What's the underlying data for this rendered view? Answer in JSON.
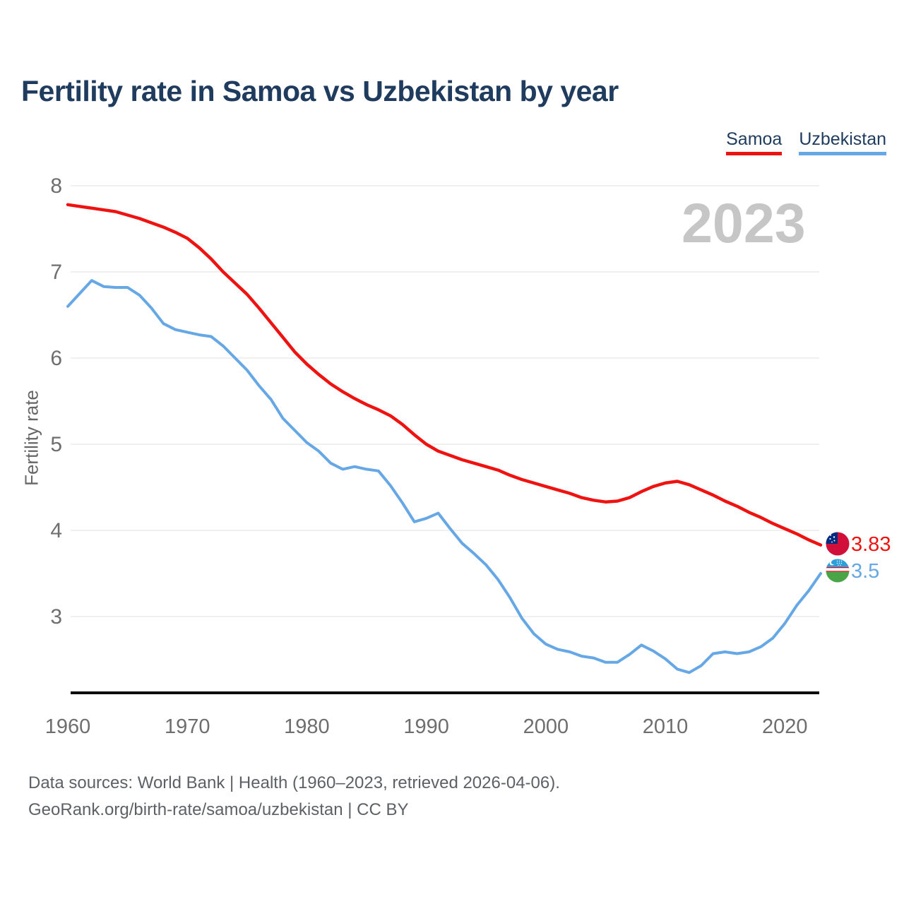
{
  "title": "Fertility rate in Samoa vs Uzbekistan by year",
  "watermark": "2023",
  "legend": [
    {
      "label": "Samoa",
      "color": "#ee1310"
    },
    {
      "label": "Uzbekistan",
      "color": "#66a7e6"
    }
  ],
  "y_axis": {
    "label": "Fertility rate",
    "ticks": [
      8,
      7,
      6,
      5,
      4,
      3
    ]
  },
  "x_axis": {
    "ticks": [
      1960,
      1970,
      1980,
      1990,
      2000,
      2010,
      2020
    ]
  },
  "end_labels": [
    {
      "series": "Samoa",
      "value": "3.83",
      "color": "#ee1310",
      "flag": "samoa-flag"
    },
    {
      "series": "Uzbekistan",
      "value": "3.5",
      "color": "#66a7e6",
      "flag": "uzbekistan-flag"
    }
  ],
  "footer": {
    "line1": "Data sources: World Bank | Health (1960–2023, retrieved 2026-04-06).",
    "line2": "GeoRank.org/birth-rate/samoa/uzbekistan | CC BY"
  },
  "chart_data": {
    "type": "line",
    "title": "Fertility rate in Samoa vs Uzbekistan by year",
    "xlabel": "",
    "ylabel": "Fertility rate",
    "xlim": [
      1960,
      2023
    ],
    "ylim": [
      2.1,
      8.2
    ],
    "grid": true,
    "legend_position": "top-right",
    "x": [
      1960,
      1961,
      1962,
      1963,
      1964,
      1965,
      1966,
      1967,
      1968,
      1969,
      1970,
      1971,
      1972,
      1973,
      1974,
      1975,
      1976,
      1977,
      1978,
      1979,
      1980,
      1981,
      1982,
      1983,
      1984,
      1985,
      1986,
      1987,
      1988,
      1989,
      1990,
      1991,
      1992,
      1993,
      1994,
      1995,
      1996,
      1997,
      1998,
      1999,
      2000,
      2001,
      2002,
      2003,
      2004,
      2005,
      2006,
      2007,
      2008,
      2009,
      2010,
      2011,
      2012,
      2013,
      2014,
      2015,
      2016,
      2017,
      2018,
      2019,
      2020,
      2021,
      2022,
      2023
    ],
    "series": [
      {
        "name": "Samoa",
        "color": "#ee1310",
        "values": [
          7.78,
          7.76,
          7.74,
          7.72,
          7.7,
          7.66,
          7.62,
          7.57,
          7.52,
          7.46,
          7.39,
          7.28,
          7.15,
          7.0,
          6.87,
          6.74,
          6.58,
          6.41,
          6.24,
          6.07,
          5.93,
          5.81,
          5.7,
          5.61,
          5.53,
          5.46,
          5.4,
          5.33,
          5.23,
          5.11,
          5.0,
          4.92,
          4.87,
          4.82,
          4.78,
          4.74,
          4.7,
          4.64,
          4.59,
          4.55,
          4.51,
          4.47,
          4.43,
          4.38,
          4.35,
          4.33,
          4.34,
          4.38,
          4.45,
          4.51,
          4.55,
          4.57,
          4.53,
          4.47,
          4.41,
          4.34,
          4.28,
          4.21,
          4.15,
          4.08,
          4.02,
          3.96,
          3.89,
          3.83
        ]
      },
      {
        "name": "Uzbekistan",
        "color": "#66a7e6",
        "values": [
          6.6,
          6.75,
          6.9,
          6.83,
          6.82,
          6.82,
          6.73,
          6.58,
          6.4,
          6.33,
          6.3,
          6.27,
          6.25,
          6.14,
          6.0,
          5.86,
          5.68,
          5.52,
          5.3,
          5.16,
          5.02,
          4.92,
          4.78,
          4.71,
          4.74,
          4.71,
          4.69,
          4.52,
          4.32,
          4.1,
          4.14,
          4.2,
          4.02,
          3.85,
          3.73,
          3.6,
          3.43,
          3.22,
          2.98,
          2.8,
          2.68,
          2.62,
          2.59,
          2.54,
          2.52,
          2.47,
          2.47,
          2.56,
          2.67,
          2.6,
          2.51,
          2.39,
          2.35,
          2.43,
          2.57,
          2.59,
          2.57,
          2.59,
          2.65,
          2.75,
          2.92,
          3.13,
          3.3,
          3.5
        ]
      }
    ]
  }
}
